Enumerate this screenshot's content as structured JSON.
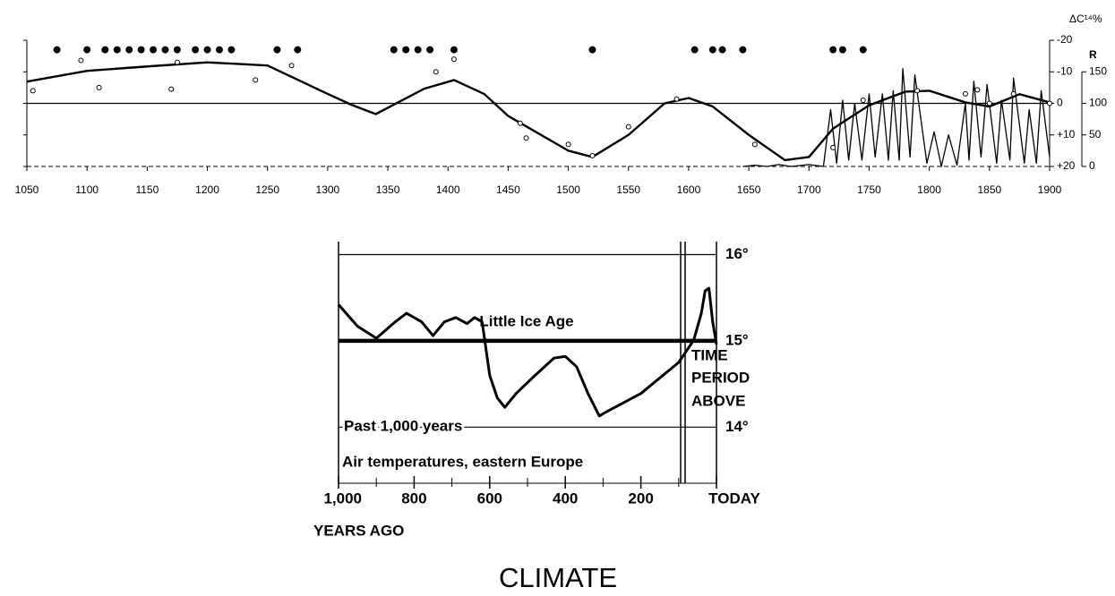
{
  "caption": "CLIMATE",
  "chart_data": [
    {
      "type": "line",
      "y_label": "ΔC¹⁴%",
      "y2_label": "R",
      "xlim": [
        1050,
        1900
      ],
      "xticks": [
        1050,
        1100,
        1150,
        1200,
        1250,
        1300,
        1350,
        1400,
        1450,
        1500,
        1550,
        1600,
        1650,
        1700,
        1750,
        1800,
        1850,
        1900
      ],
      "ylim": [
        20,
        -20
      ],
      "yticks": [
        -20,
        -10,
        0,
        {
          "value": 10,
          "label": "+10"
        },
        {
          "value": 20,
          "label": "+20"
        }
      ],
      "y2lim": [
        0,
        200
      ],
      "y2ticks": [
        150,
        100,
        50,
        0
      ],
      "series": [
        {
          "marker": "line",
          "color": "#000",
          "x": [
            1050,
            1100,
            1150,
            1200,
            1250,
            1300,
            1320,
            1340,
            1380,
            1405,
            1430,
            1450,
            1500,
            1520,
            1550,
            1580,
            1600,
            1620,
            1650,
            1680,
            1700,
            1720,
            1750,
            1780,
            1800,
            1830,
            1850,
            1875,
            1900
          ],
          "values": [
            -6.9,
            -10.3,
            -11.7,
            -13,
            -12,
            -3,
            0.5,
            3.4,
            -4.6,
            -7.4,
            -3,
            4,
            15,
            17,
            10,
            0,
            -1.7,
            1,
            10,
            18,
            17,
            8,
            0.6,
            -3.7,
            -4,
            -0.3,
            1,
            -2.9,
            -0.3
          ]
        },
        {
          "marker": "line",
          "axis": "y2",
          "color": "#000",
          "x": [
            1645,
            1655,
            1665,
            1675,
            1685,
            1700,
            1712,
            1718,
            1723,
            1728,
            1733,
            1738,
            1744,
            1750,
            1755,
            1761,
            1766,
            1770,
            1775,
            1778,
            1784,
            1788,
            1798,
            1804,
            1810,
            1816,
            1823,
            1830,
            1833,
            1837,
            1843,
            1848,
            1856,
            1860,
            1867,
            1870,
            1879,
            1883,
            1889,
            1893,
            1900
          ],
          "values": [
            0,
            2,
            0,
            3,
            0,
            3,
            0,
            90,
            5,
            105,
            10,
            100,
            10,
            115,
            15,
            115,
            10,
            120,
            10,
            155,
            15,
            145,
            5,
            55,
            0,
            50,
            2,
            100,
            10,
            135,
            15,
            130,
            5,
            105,
            10,
            140,
            5,
            90,
            5,
            120,
            15
          ]
        },
        {
          "marker": "open",
          "color": "#000",
          "x": [
            1055,
            1095,
            1110,
            1170,
            1175,
            1240,
            1270,
            1390,
            1405,
            1460,
            1465,
            1500,
            1520,
            1550,
            1590,
            1655,
            1720,
            1745,
            1790,
            1830,
            1840,
            1850,
            1870,
            1900
          ],
          "values": [
            -4,
            -13.6,
            -5,
            -4.5,
            -13,
            -7.4,
            -12,
            -10,
            -14,
            6.3,
            11,
            13,
            16.6,
            7.4,
            -1.4,
            13,
            14,
            -1,
            -4,
            -3,
            -4.3,
            0,
            -3,
            0
          ]
        },
        {
          "marker": "filled",
          "color": "#000",
          "x": [
            1075,
            1100,
            1115,
            1125,
            1135,
            1145,
            1155,
            1165,
            1175,
            1190,
            1200,
            1210,
            1220,
            1258,
            1275,
            1355,
            1365,
            1375,
            1385,
            1405,
            1520,
            1605,
            1620,
            1628,
            1645,
            1720,
            1728,
            1745
          ],
          "values": [
            -17,
            -17,
            -17,
            -17,
            -17,
            -17,
            -17,
            -17,
            -17,
            -17,
            -17,
            -17,
            -17,
            -17,
            -17,
            -17,
            -17,
            -17,
            -17,
            -17,
            -17,
            -17,
            -17,
            -17,
            -17,
            -17,
            -17,
            -17
          ]
        }
      ]
    },
    {
      "type": "line",
      "x_label": "YEARS AGO",
      "xlim": [
        1000,
        0
      ],
      "xticks": [
        {
          "value": 1000,
          "label": "1,000"
        },
        800,
        600,
        400,
        200,
        {
          "value": 0,
          "label": "TODAY"
        }
      ],
      "xticks_minor": [
        900,
        700,
        500,
        300,
        100
      ],
      "ylim": [
        13.35,
        16.15
      ],
      "yticks": [
        {
          "value": 14,
          "label": "14°"
        },
        {
          "value": 15,
          "label": "15°"
        },
        {
          "value": 16,
          "label": "16°"
        }
      ],
      "grid": true,
      "annotations": [
        "Little Ice Age",
        "TIME",
        "PERIOD",
        "ABOVE",
        "Past 1,000 years",
        "Air temperatures, eastern Europe"
      ],
      "series": [
        {
          "marker": "line",
          "color": "#000",
          "x": [
            1000,
            950,
            900,
            850,
            820,
            780,
            750,
            720,
            690,
            660,
            640,
            620,
            600,
            580,
            560,
            530,
            480,
            430,
            400,
            370,
            340,
            310,
            290,
            200,
            100,
            60,
            40,
            30,
            20,
            10,
            0
          ],
          "values": [
            15.42,
            15.17,
            15.03,
            15.22,
            15.32,
            15.22,
            15.06,
            15.22,
            15.27,
            15.2,
            15.27,
            15.22,
            14.6,
            14.34,
            14.23,
            14.39,
            14.6,
            14.8,
            14.82,
            14.7,
            14.39,
            14.13,
            14.18,
            14.39,
            14.75,
            15.01,
            15.32,
            15.58,
            15.61,
            15.22,
            14.96
          ]
        }
      ]
    }
  ]
}
